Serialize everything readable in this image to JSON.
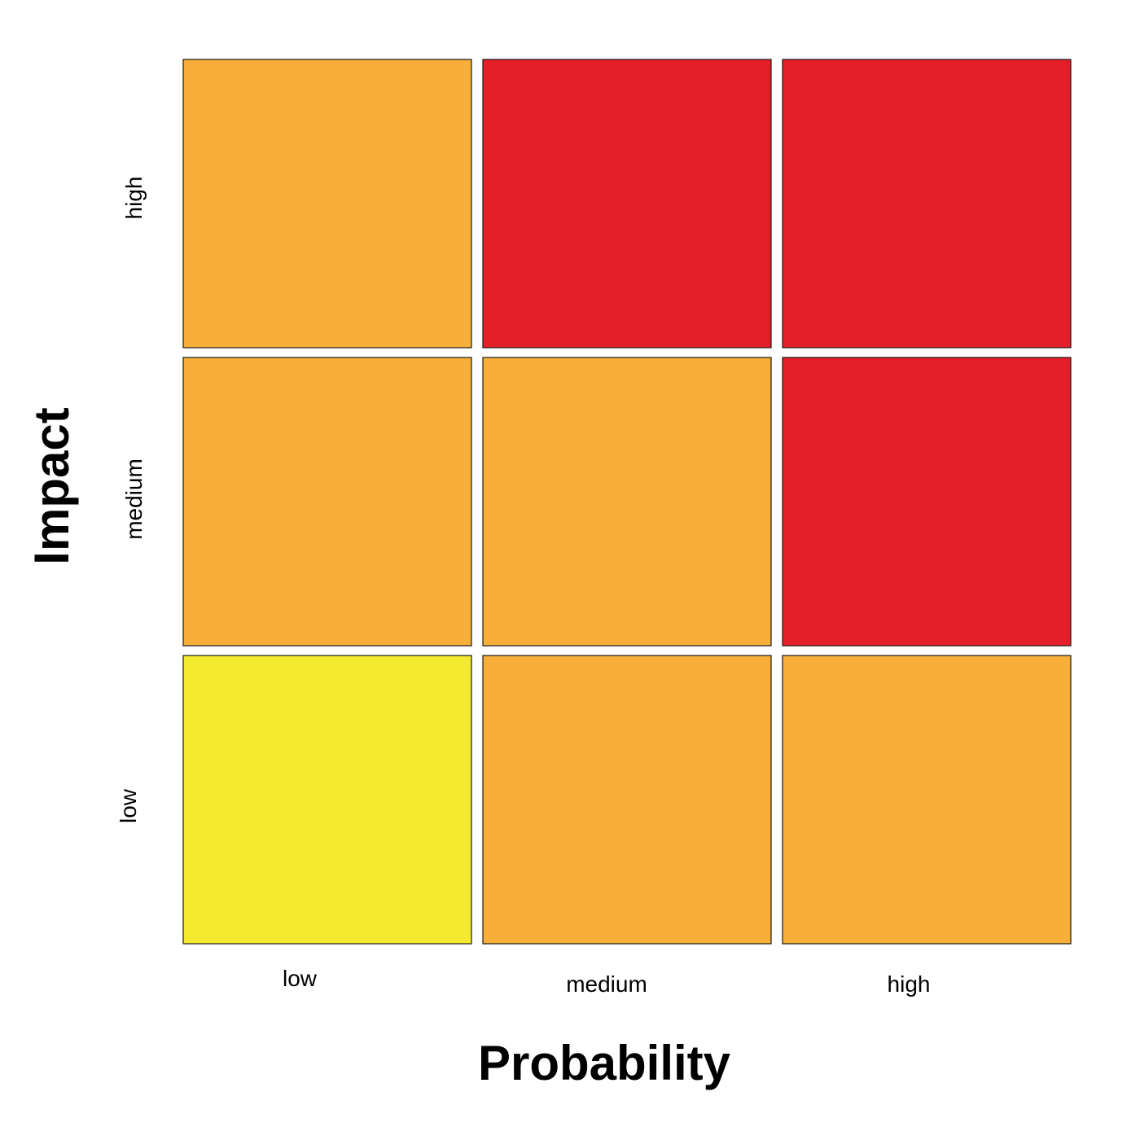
{
  "chart_data": {
    "type": "heatmap",
    "title": "",
    "xlabel": "Probability",
    "ylabel": "Impact",
    "x_categories": [
      "low",
      "medium",
      "high"
    ],
    "y_categories": [
      "low",
      "medium",
      "high"
    ],
    "grid": false,
    "legend": "none",
    "levels": {
      "low": "#F4EA30",
      "medium": "#F7AF39",
      "high": "#E51F27"
    },
    "cells": [
      {
        "probability": "low",
        "impact": "low",
        "level": "low"
      },
      {
        "probability": "medium",
        "impact": "low",
        "level": "medium"
      },
      {
        "probability": "high",
        "impact": "low",
        "level": "medium"
      },
      {
        "probability": "low",
        "impact": "medium",
        "level": "medium"
      },
      {
        "probability": "medium",
        "impact": "medium",
        "level": "medium"
      },
      {
        "probability": "high",
        "impact": "medium",
        "level": "high"
      },
      {
        "probability": "low",
        "impact": "high",
        "level": "medium"
      },
      {
        "probability": "medium",
        "impact": "high",
        "level": "high"
      },
      {
        "probability": "high",
        "impact": "high",
        "level": "high"
      }
    ]
  }
}
